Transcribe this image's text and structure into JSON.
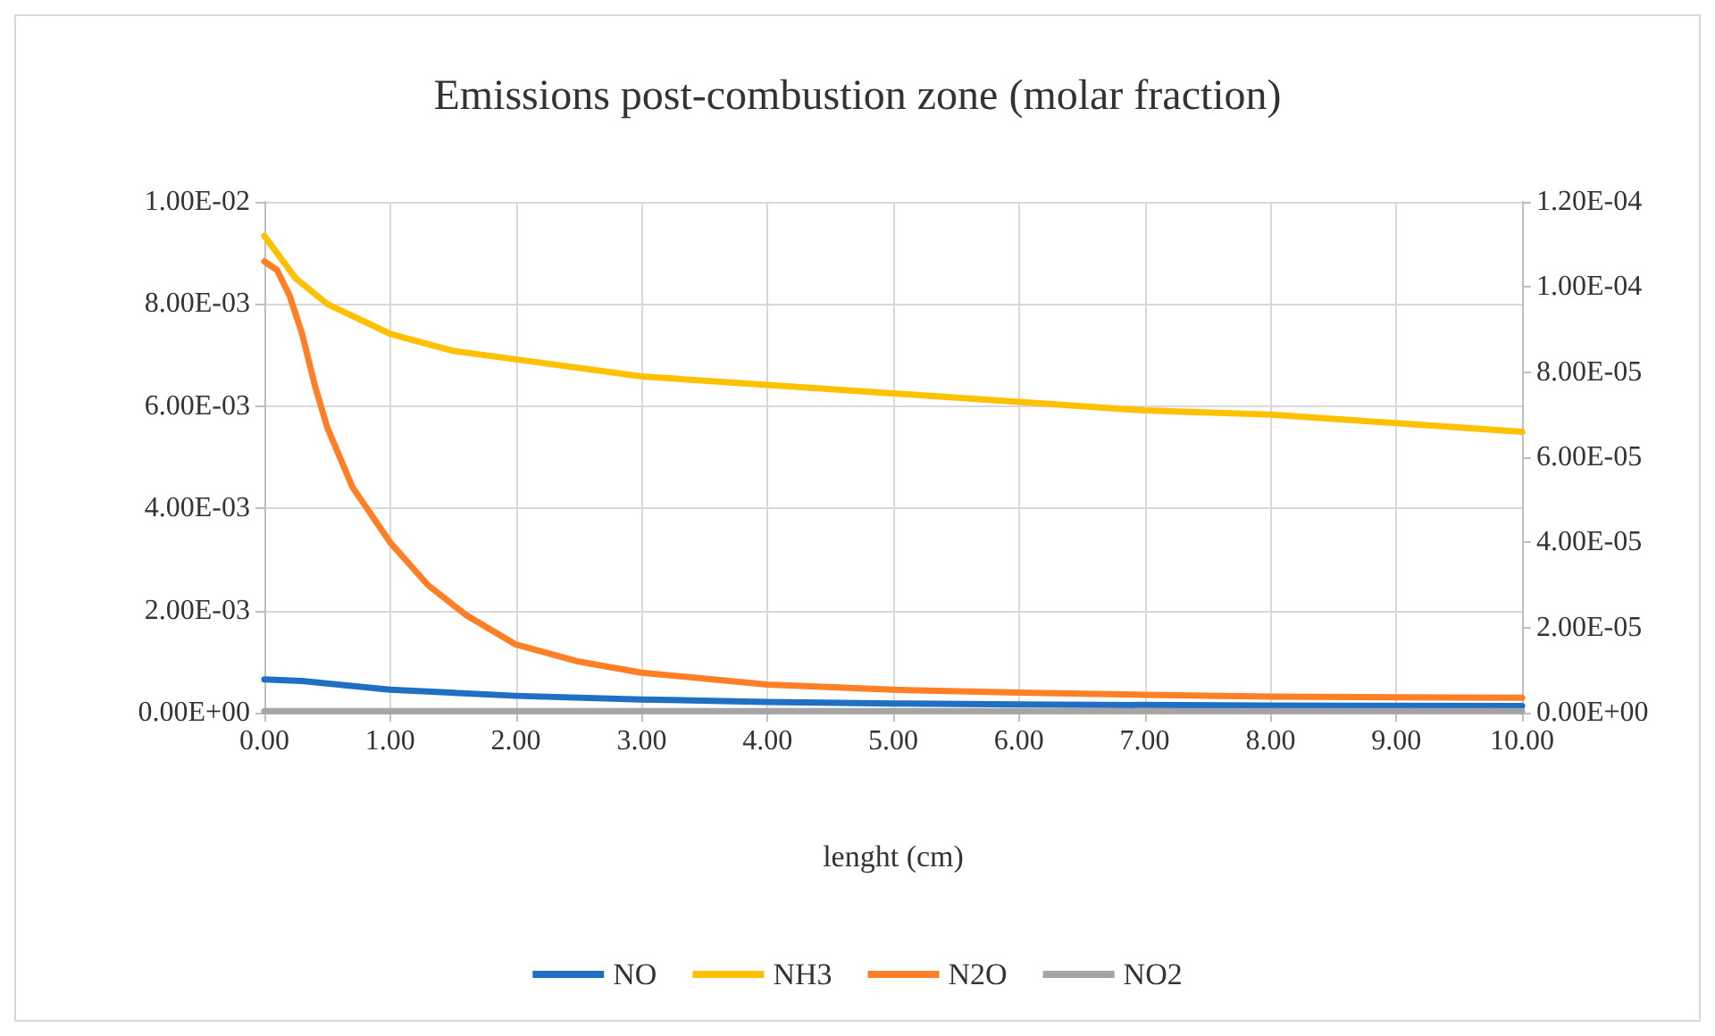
{
  "chart_data": {
    "type": "line",
    "title": "Emissions post-combustion zone (molar fraction)",
    "xlabel": "lenght (cm)",
    "xlim": [
      0,
      10
    ],
    "xticks": [
      {
        "value": 0,
        "label": "0.00"
      },
      {
        "value": 1,
        "label": "1.00"
      },
      {
        "value": 2,
        "label": "2.00"
      },
      {
        "value": 3,
        "label": "3.00"
      },
      {
        "value": 4,
        "label": "4.00"
      },
      {
        "value": 5,
        "label": "5.00"
      },
      {
        "value": 6,
        "label": "6.00"
      },
      {
        "value": 7,
        "label": "7.00"
      },
      {
        "value": 8,
        "label": "8.00"
      },
      {
        "value": 9,
        "label": "9.00"
      },
      {
        "value": 10,
        "label": "10.00"
      }
    ],
    "ylim": [
      0,
      0.01
    ],
    "yticks": [
      {
        "value": 0,
        "label": "0.00E+00"
      },
      {
        "value": 0.002,
        "label": "2.00E-03"
      },
      {
        "value": 0.004,
        "label": "4.00E-03"
      },
      {
        "value": 0.006,
        "label": "6.00E-03"
      },
      {
        "value": 0.008,
        "label": "8.00E-03"
      },
      {
        "value": 0.01,
        "label": "1.00E-02"
      }
    ],
    "y2lim": [
      0,
      0.00012
    ],
    "y2ticks": [
      {
        "value": 0,
        "label": "0.00E+00"
      },
      {
        "value": 2e-05,
        "label": "2.00E-05"
      },
      {
        "value": 4e-05,
        "label": "4.00E-05"
      },
      {
        "value": 6e-05,
        "label": "6.00E-05"
      },
      {
        "value": 8e-05,
        "label": "8.00E-05"
      },
      {
        "value": 0.0001,
        "label": "1.00E-04"
      },
      {
        "value": 0.00012,
        "label": "1.20E-04"
      }
    ],
    "grid": true,
    "legend": "bottom",
    "marker": "none",
    "line_style": "solid",
    "series": [
      {
        "name": "NO",
        "color": "#1f6fc5",
        "x": [
          0,
          0.3,
          1,
          2,
          3,
          4,
          5,
          6,
          8,
          10
        ],
        "values": [
          0.00065,
          0.00062,
          0.00045,
          0.00033,
          0.00026,
          0.00021,
          0.00018,
          0.00016,
          0.00014,
          0.00013
        ]
      },
      {
        "name": "NH3",
        "color": "#ffc000",
        "axis": "y2",
        "x": [
          0,
          0.25,
          0.5,
          1,
          1.5,
          2,
          3,
          4,
          5,
          6,
          7,
          8,
          9,
          10
        ],
        "values": [
          0.000112,
          0.000102,
          9.6e-05,
          8.9e-05,
          8.5e-05,
          8.3e-05,
          7.9e-05,
          7.7e-05,
          7.5e-05,
          7.3e-05,
          7.1e-05,
          7e-05,
          6.8e-05,
          6.6e-05
        ]
      },
      {
        "name": "N2O",
        "color": "#ff7f27",
        "axis": "y2",
        "x": [
          0,
          0.1,
          0.2,
          0.3,
          0.4,
          0.5,
          0.7,
          1,
          1.3,
          1.6,
          2,
          2.5,
          3,
          4,
          5,
          6,
          7,
          8,
          9,
          10
        ],
        "values": [
          0.000106,
          0.000104,
          9.8e-05,
          8.9e-05,
          7.7e-05,
          6.7e-05,
          5.3e-05,
          4e-05,
          3e-05,
          2.3e-05,
          1.6e-05,
          1.2e-05,
          9.4e-06,
          6.6e-06,
          5.4e-06,
          4.7e-06,
          4.2e-06,
          3.8e-06,
          3.6e-06,
          3.5e-06
        ]
      },
      {
        "name": "NO2",
        "color": "#a5a5a5",
        "x": [
          0,
          5,
          10
        ],
        "values": [
          3e-05,
          3e-05,
          3e-05
        ]
      }
    ]
  }
}
